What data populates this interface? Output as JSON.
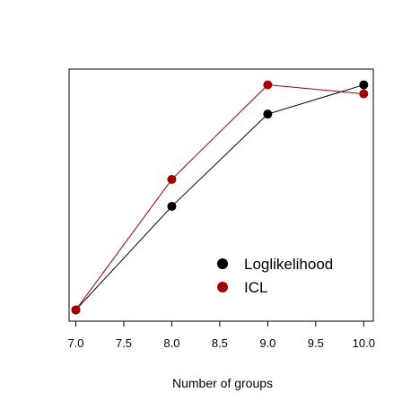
{
  "chart_data": {
    "type": "line",
    "title": "",
    "xlabel": "Number of groups",
    "ylabel": "",
    "x_ticks": [
      "7.0",
      "7.5",
      "8.0",
      "8.5",
      "9.0",
      "9.5",
      "10.0"
    ],
    "xlim": [
      6.93,
      10.1
    ],
    "ylim": [
      -0.05,
      1.07
    ],
    "y_scale": "normalized (no y-axis labels shown)",
    "grid": false,
    "legend_position": "bottom-right",
    "series": [
      {
        "name": "Loglikelihood",
        "color": "#000000",
        "x": [
          7,
          8,
          9,
          10
        ],
        "y": [
          0.0,
          0.46,
          0.87,
          1.0
        ]
      },
      {
        "name": "ICL",
        "color": "#a00000",
        "x": [
          7,
          8,
          9,
          10
        ],
        "y": [
          0.0,
          0.58,
          1.0,
          0.96
        ]
      }
    ]
  }
}
